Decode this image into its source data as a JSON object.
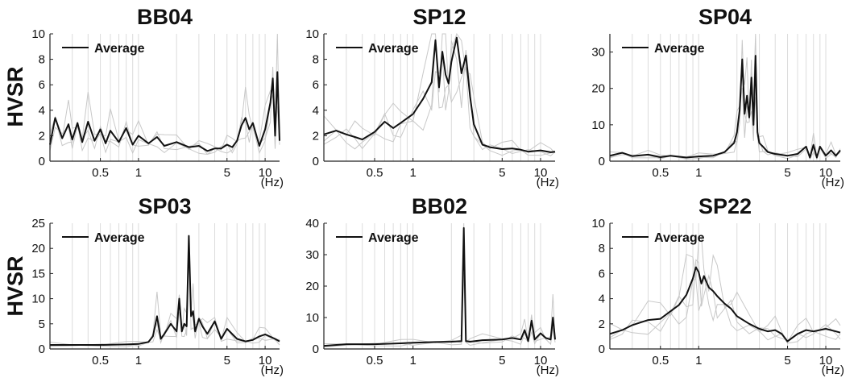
{
  "figure": {
    "ylabel": "HVSR",
    "xunit": "(Hz)",
    "colors": {
      "average": "#111111",
      "individual": "#c8c8c8",
      "grid": "#dcdcdc",
      "axis": "#222222"
    }
  },
  "chart_data": [
    {
      "type": "line",
      "title": "BB04",
      "xlog": true,
      "xlim": [
        0.2,
        13
      ],
      "ylim": [
        0,
        10
      ],
      "yticks": [
        "0",
        "2",
        "4",
        "6",
        "8",
        "10"
      ],
      "xticks": [
        "0.5",
        "1",
        "5",
        "10"
      ],
      "xtick_values": [
        0.5,
        1,
        5,
        10
      ],
      "legend": "Average",
      "ylabel": "HVSR",
      "series": [
        {
          "name": "Average",
          "x": [
            0.2,
            0.22,
            0.25,
            0.28,
            0.3,
            0.33,
            0.36,
            0.4,
            0.45,
            0.5,
            0.55,
            0.6,
            0.7,
            0.8,
            0.9,
            1,
            1.2,
            1.4,
            1.6,
            2,
            2.5,
            3,
            3.5,
            4,
            4.5,
            5,
            5.5,
            6,
            6.5,
            7,
            7.5,
            8,
            9,
            10,
            11,
            11.5,
            12,
            12.5,
            13
          ],
          "y": [
            1.3,
            3.4,
            1.8,
            2.9,
            1.7,
            3.0,
            1.5,
            3.1,
            1.6,
            2.5,
            1.4,
            2.4,
            1.5,
            2.6,
            1.3,
            2.0,
            1.4,
            1.9,
            1.2,
            1.5,
            1.1,
            1.2,
            0.8,
            1.0,
            1.0,
            1.3,
            1.1,
            1.6,
            2.8,
            3.4,
            2.5,
            3.0,
            1.2,
            2.5,
            4.6,
            6.5,
            2.0,
            7.0,
            1.6
          ]
        }
      ]
    },
    {
      "type": "line",
      "title": "SP12",
      "xlog": true,
      "xlim": [
        0.2,
        13
      ],
      "ylim": [
        0,
        10
      ],
      "yticks": [
        "0",
        "2",
        "4",
        "6",
        "8",
        "10"
      ],
      "xticks": [
        "0.5",
        "1",
        "5",
        "10"
      ],
      "xtick_values": [
        0.5,
        1,
        5,
        10
      ],
      "legend": "Average",
      "series": [
        {
          "name": "Average",
          "x": [
            0.2,
            0.25,
            0.3,
            0.35,
            0.4,
            0.5,
            0.6,
            0.7,
            0.8,
            1,
            1.2,
            1.4,
            1.5,
            1.6,
            1.7,
            1.8,
            1.9,
            2.0,
            2.2,
            2.4,
            2.6,
            2.8,
            3.0,
            3.5,
            4,
            5,
            6,
            7,
            8,
            10,
            12,
            13
          ],
          "y": [
            2.1,
            2.4,
            2.1,
            1.9,
            1.7,
            2.3,
            3.1,
            2.6,
            3.0,
            3.7,
            4.9,
            6.2,
            9.5,
            5.8,
            8.6,
            6.8,
            6.1,
            7.8,
            9.7,
            6.9,
            8.3,
            5.1,
            2.9,
            1.3,
            1.1,
            0.95,
            1.0,
            0.9,
            0.75,
            0.85,
            0.7,
            0.75
          ]
        }
      ]
    },
    {
      "type": "line",
      "title": "SP04",
      "xlog": true,
      "xlim": [
        0.2,
        13
      ],
      "ylim": [
        0,
        35
      ],
      "yticks": [
        "0",
        "10",
        "20",
        "30"
      ],
      "xticks": [
        "0.5",
        "1",
        "5",
        "10"
      ],
      "xtick_values": [
        0.5,
        1,
        5,
        10
      ],
      "legend": "Average",
      "series": [
        {
          "name": "Average",
          "x": [
            0.2,
            0.25,
            0.3,
            0.4,
            0.5,
            0.6,
            0.8,
            1,
            1.3,
            1.6,
            1.9,
            2.0,
            2.1,
            2.2,
            2.3,
            2.4,
            2.5,
            2.6,
            2.7,
            2.8,
            2.9,
            3.0,
            3.2,
            3.5,
            4,
            5,
            6,
            7,
            7.5,
            8,
            8.5,
            9,
            10,
            11,
            12,
            13
          ],
          "y": [
            1.5,
            2.3,
            1.4,
            1.8,
            1.1,
            1.5,
            1.0,
            1.3,
            1.5,
            2.5,
            5.0,
            8.0,
            14.0,
            28.0,
            13.0,
            18.0,
            12.0,
            23.0,
            10.0,
            29.0,
            8.0,
            5.0,
            4.0,
            2.5,
            2.0,
            1.5,
            2.0,
            4.0,
            1.0,
            4.5,
            1.0,
            4.0,
            1.5,
            3.0,
            1.5,
            3.0
          ]
        }
      ]
    },
    {
      "type": "line",
      "title": "SP03",
      "xlog": true,
      "xlim": [
        0.2,
        13
      ],
      "ylim": [
        0,
        25
      ],
      "yticks": [
        "0",
        "5",
        "10",
        "15",
        "20",
        "25"
      ],
      "xticks": [
        "0.5",
        "1",
        "5",
        "10"
      ],
      "xtick_values": [
        0.5,
        1,
        5,
        10
      ],
      "legend": "Average",
      "ylabel": "HVSR",
      "series": [
        {
          "name": "Average",
          "x": [
            0.2,
            0.3,
            0.5,
            0.8,
            1.0,
            1.2,
            1.3,
            1.4,
            1.5,
            1.6,
            1.8,
            2.0,
            2.1,
            2.2,
            2.3,
            2.4,
            2.5,
            2.6,
            2.7,
            2.8,
            3.0,
            3.2,
            3.5,
            4,
            4.5,
            5,
            6,
            7,
            8,
            9,
            10,
            12,
            13
          ],
          "y": [
            0.8,
            0.8,
            0.8,
            0.9,
            1.0,
            1.4,
            2.5,
            6.5,
            2.0,
            3.0,
            5.0,
            3.5,
            10.0,
            3.5,
            5.0,
            4.5,
            22.5,
            6.5,
            7.5,
            3.5,
            6.0,
            4.5,
            3.0,
            5.5,
            2.0,
            4.0,
            2.0,
            1.5,
            1.8,
            2.5,
            2.9,
            2.0,
            1.5
          ]
        }
      ]
    },
    {
      "type": "line",
      "title": "BB02",
      "xlog": true,
      "xlim": [
        0.2,
        13
      ],
      "ylim": [
        0,
        40
      ],
      "yticks": [
        "0",
        "10",
        "20",
        "30",
        "40"
      ],
      "xticks": [
        "0.5",
        "1",
        "5",
        "10"
      ],
      "xtick_values": [
        0.5,
        1,
        5,
        10
      ],
      "legend": "Average",
      "series": [
        {
          "name": "Average",
          "x": [
            0.2,
            0.3,
            0.5,
            0.8,
            1.0,
            1.5,
            2.0,
            2.4,
            2.5,
            2.6,
            2.8,
            3.5,
            5,
            6,
            7,
            7.5,
            8,
            8.5,
            9,
            10,
            11,
            12,
            12.5,
            13
          ],
          "y": [
            1.0,
            1.5,
            1.5,
            1.8,
            2.0,
            2.2,
            2.3,
            2.5,
            38.5,
            2.5,
            2.3,
            2.8,
            3.0,
            3.5,
            3.0,
            6.0,
            2.5,
            9.0,
            3.0,
            5.0,
            3.5,
            3.0,
            10.0,
            3.0
          ]
        }
      ]
    },
    {
      "type": "line",
      "title": "SP22",
      "xlog": true,
      "xlim": [
        0.2,
        13
      ],
      "ylim": [
        0,
        10
      ],
      "yticks": [
        "0",
        "2",
        "4",
        "6",
        "8",
        "10"
      ],
      "xticks": [
        "0.5",
        "1",
        "5",
        "10"
      ],
      "xtick_values": [
        0.5,
        1,
        5,
        10
      ],
      "legend": "Average",
      "series": [
        {
          "name": "Average",
          "x": [
            0.2,
            0.25,
            0.3,
            0.4,
            0.5,
            0.6,
            0.7,
            0.8,
            0.9,
            0.95,
            1.0,
            1.05,
            1.1,
            1.2,
            1.3,
            1.4,
            1.6,
            1.8,
            2.0,
            2.5,
            3.0,
            3.5,
            4.0,
            4.5,
            5.0,
            6,
            7,
            8,
            10,
            12,
            13
          ],
          "y": [
            1.2,
            1.5,
            1.9,
            2.3,
            2.4,
            3.0,
            3.5,
            4.3,
            5.6,
            6.5,
            6.1,
            5.2,
            5.8,
            4.9,
            4.6,
            4.2,
            3.6,
            3.2,
            2.6,
            2.0,
            1.6,
            1.4,
            1.5,
            1.2,
            0.6,
            1.2,
            1.5,
            1.4,
            1.6,
            1.4,
            1.3
          ]
        }
      ]
    }
  ]
}
